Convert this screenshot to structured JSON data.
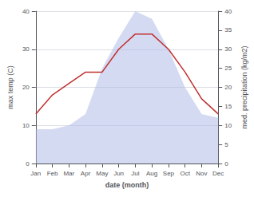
{
  "chart_data": {
    "type": "line",
    "xlabel": "date (month)",
    "ylabel": "max temp (C)",
    "y2label": "med. precipitation (kg/m2)",
    "categories": [
      "Jan",
      "Feb",
      "Mar",
      "Apr",
      "May",
      "Jun",
      "Jul",
      "Aug",
      "Sep",
      "Oct",
      "Nov",
      "Dec"
    ],
    "series": [
      {
        "type": "line",
        "color": "#c03030",
        "values": [
          13,
          18,
          21,
          24,
          24,
          30,
          34,
          34,
          30,
          24,
          17,
          13
        ]
      },
      {
        "type": "area",
        "color": "#b0bce8",
        "axis": "y2",
        "values": [
          9,
          9,
          10,
          13,
          25,
          33,
          40,
          38,
          30,
          20,
          13,
          12
        ]
      }
    ],
    "ylim": [
      0,
      40
    ],
    "yticks": [
      0,
      10,
      20,
      30,
      40
    ],
    "y2lim": [
      0,
      40
    ],
    "y2ticks": [
      0,
      5,
      10,
      15,
      20,
      25,
      30,
      35,
      40
    ],
    "grid": true
  }
}
